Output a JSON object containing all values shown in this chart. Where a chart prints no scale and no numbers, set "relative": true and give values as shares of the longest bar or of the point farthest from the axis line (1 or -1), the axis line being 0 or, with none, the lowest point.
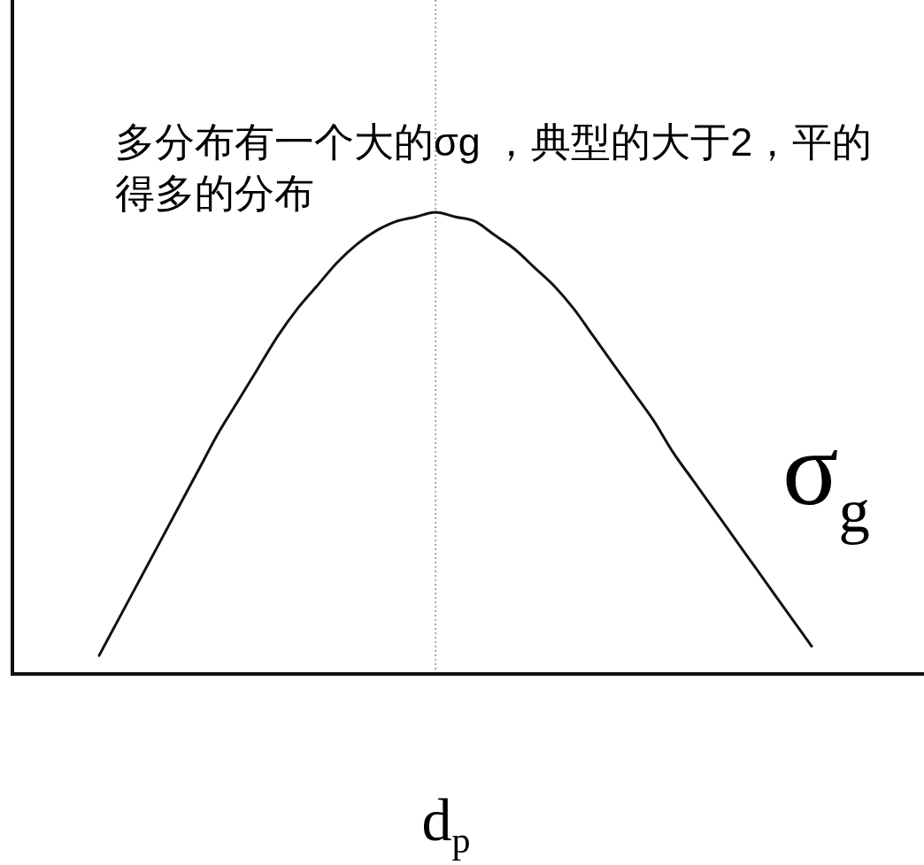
{
  "chart_data": {
    "type": "line",
    "relative": true,
    "categories": [
      null,
      null,
      null,
      null,
      null,
      null,
      null,
      null,
      null,
      null,
      null,
      null,
      null,
      null,
      null,
      null,
      null,
      null,
      null,
      null,
      null,
      null,
      null,
      null,
      null,
      null,
      null,
      null,
      null,
      null,
      null,
      null,
      null,
      null,
      null,
      null,
      null
    ],
    "values": [
      0.04,
      0.12,
      0.2,
      0.28,
      0.36,
      0.44,
      0.52,
      0.59,
      0.66,
      0.73,
      0.79,
      0.84,
      0.89,
      0.93,
      0.96,
      0.98,
      0.99,
      1,
      0.99,
      0.98,
      0.95,
      0.92,
      0.88,
      0.84,
      0.79,
      0.73,
      0.67,
      0.61,
      0.55,
      0.48,
      0.42,
      0.36,
      0.3,
      0.24,
      0.18,
      0.12,
      0.06
    ],
    "color": "#111111",
    "xlabel": "d$_{p}$",
    "annotations": [
      "多分布有一个大的σg ，典型的大于2，平的",
      "得多的分布",
      "σ$_{g}$"
    ]
  }
}
